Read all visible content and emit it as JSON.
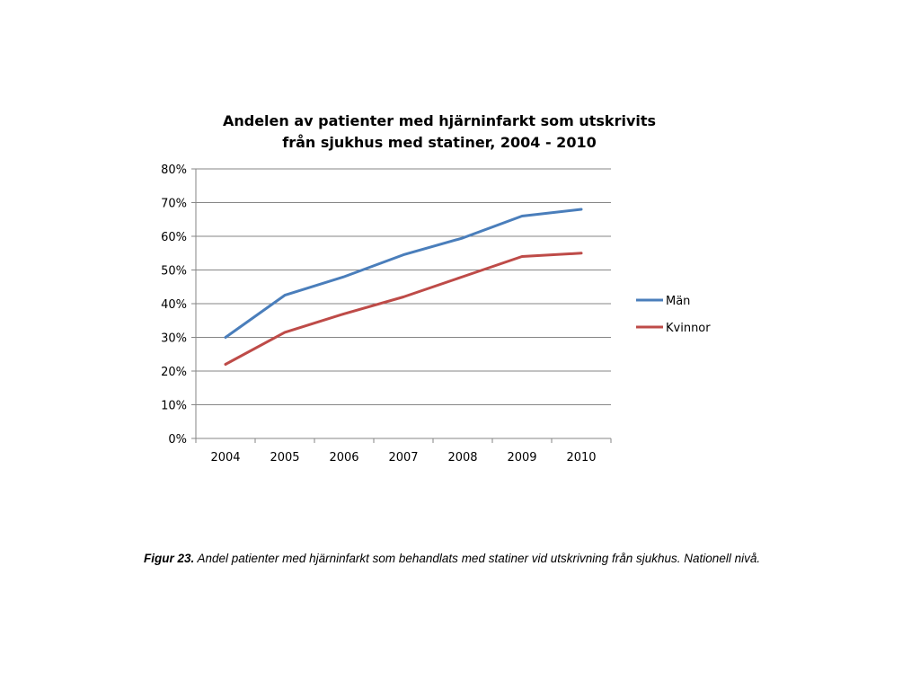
{
  "chart_data": {
    "type": "line",
    "title_lines": [
      "Andelen av patienter med hjärninfarkt som utskrivits",
      "från sjukhus med statiner, 2004 - 2010"
    ],
    "categories": [
      "2004",
      "2005",
      "2006",
      "2007",
      "2008",
      "2009",
      "2010"
    ],
    "y_ticks": [
      "0%",
      "10%",
      "20%",
      "30%",
      "40%",
      "50%",
      "60%",
      "70%",
      "80%"
    ],
    "ylim": [
      0,
      80
    ],
    "y_unit": "%",
    "grid": true,
    "legend_position": "right",
    "series": [
      {
        "name": "Män",
        "color": "#4a7ebb",
        "values": [
          30,
          42.5,
          48,
          54.5,
          59.5,
          66,
          68
        ]
      },
      {
        "name": "Kvinnor",
        "color": "#be4b48",
        "values": [
          22,
          31.5,
          37,
          42,
          48,
          54,
          55
        ]
      }
    ]
  },
  "caption": {
    "label": "Figur 23.",
    "text": " Andel patienter med hjärninfarkt som behandlats med statiner vid utskrivning från sjukhus. Nationell nivå."
  }
}
